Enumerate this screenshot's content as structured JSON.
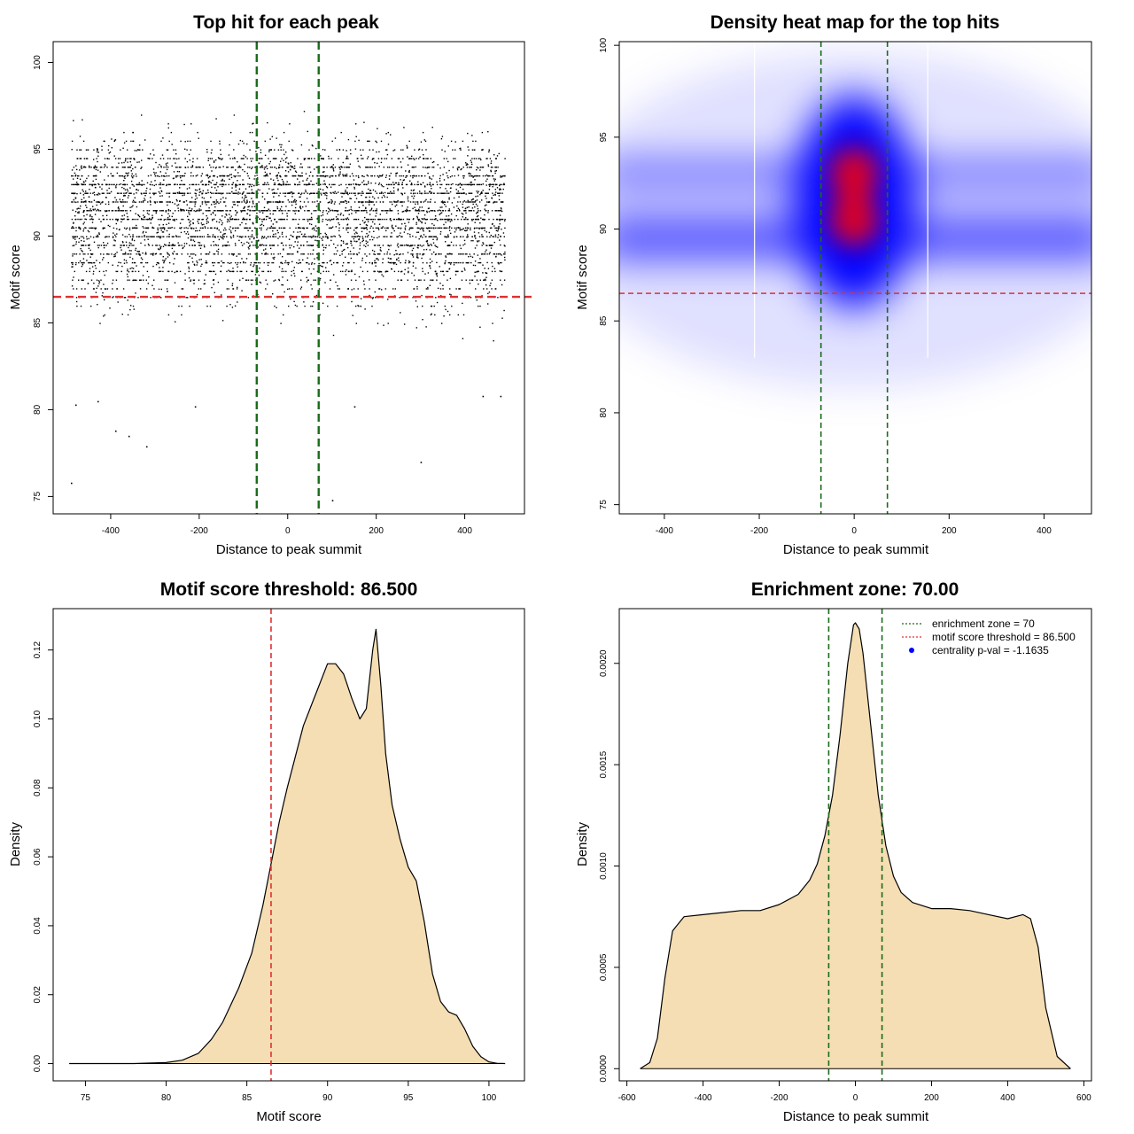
{
  "chart_data": [
    {
      "type": "scatter",
      "title": "Top hit for each peak",
      "xlabel": "Distance to peak summit",
      "ylabel": "Motif score",
      "xlim": [
        -530,
        535
      ],
      "ylim": [
        74,
        101.2
      ],
      "xticks": [
        -400,
        -200,
        0,
        200,
        400
      ],
      "yticks": [
        75,
        80,
        85,
        90,
        95,
        100
      ],
      "point_cloud": {
        "x_range": [
          -490,
          490
        ],
        "score_distribution": [
          {
            "score": 93,
            "weight": 0.42,
            "sd": 2.0
          },
          {
            "score": 90,
            "weight": 0.58,
            "sd": 2.8
          }
        ],
        "score_range": [
          80,
          99.5
        ]
      },
      "outliers": [
        {
          "x": -490,
          "y": 75.8
        },
        {
          "x": -390,
          "y": 78.8
        },
        {
          "x": -360,
          "y": 78.5
        },
        {
          "x": -320,
          "y": 77.9
        },
        {
          "x": 300,
          "y": 77.0
        },
        {
          "x": 100,
          "y": 74.8
        },
        {
          "x": -480,
          "y": 80.3
        },
        {
          "x": -210,
          "y": 80.2
        },
        {
          "x": 150,
          "y": 80.2
        },
        {
          "x": 480,
          "y": 80.8
        },
        {
          "x": 440,
          "y": 80.8
        },
        {
          "x": -430,
          "y": 80.5
        }
      ],
      "hlines": [
        {
          "y": 86.5,
          "color": "#e03030"
        }
      ],
      "vlines": [
        {
          "x": -70,
          "color": "#1a6b1a"
        },
        {
          "x": 70,
          "color": "#1a6b1a"
        }
      ]
    },
    {
      "type": "heatmap",
      "title": "Density heat map for the top hits",
      "xlabel": "Distance to peak summit",
      "ylabel": "Motif score",
      "xlim": [
        -495,
        500
      ],
      "ylim": [
        74.5,
        100.2
      ],
      "xticks": [
        -400,
        -200,
        0,
        200,
        400
      ],
      "yticks": [
        75,
        80,
        85,
        90,
        95,
        100
      ],
      "colors": {
        "low": "#ffffff",
        "mid": "#0000ff",
        "high": "#ff0000"
      },
      "hotspots": [
        {
          "x": 0,
          "y": 93,
          "level": "high"
        },
        {
          "x": 0,
          "y": 90.5,
          "level": "high"
        }
      ],
      "bands": [
        {
          "y": 93
        },
        {
          "y": 90
        },
        {
          "y": 89
        }
      ],
      "white_lines_x": [
        -210,
        155
      ],
      "hlines": [
        {
          "y": 86.5,
          "color": "#e03030"
        }
      ],
      "vlines": [
        {
          "x": -70,
          "color": "#1a6b1a"
        },
        {
          "x": 70,
          "color": "#1a6b1a"
        }
      ]
    },
    {
      "type": "area",
      "title": "Motif score threshold: 86.500",
      "xlabel": "Motif score",
      "ylabel": "Density",
      "xlim": [
        73,
        102.2
      ],
      "ylim": [
        -0.005,
        0.132
      ],
      "xticks": [
        75,
        80,
        85,
        90,
        95,
        100
      ],
      "yticks": [
        0.0,
        0.02,
        0.04,
        0.06,
        0.08,
        0.1,
        0.12
      ],
      "ytick_labels": [
        "0.00",
        "0.02",
        "0.04",
        "0.06",
        "0.08",
        "0.10",
        "0.12"
      ],
      "fill_color": "#f5deb3",
      "x": [
        74,
        78,
        80,
        81,
        82,
        82.8,
        83.5,
        84.5,
        85.3,
        86,
        86.5,
        87,
        87.5,
        88,
        88.5,
        89,
        89.5,
        90,
        90.5,
        91,
        91.5,
        92,
        92.4,
        92.8,
        93,
        93.3,
        93.6,
        94,
        94.5,
        95,
        95.5,
        96,
        96.5,
        97,
        97.5,
        98,
        98.5,
        99,
        99.5,
        100,
        100.5,
        101
      ],
      "y": [
        0.0,
        0.0,
        0.0003,
        0.001,
        0.003,
        0.007,
        0.012,
        0.022,
        0.032,
        0.046,
        0.058,
        0.07,
        0.08,
        0.089,
        0.098,
        0.104,
        0.11,
        0.116,
        0.116,
        0.113,
        0.106,
        0.1,
        0.103,
        0.12,
        0.126,
        0.11,
        0.09,
        0.075,
        0.065,
        0.057,
        0.053,
        0.041,
        0.026,
        0.018,
        0.015,
        0.014,
        0.01,
        0.005,
        0.002,
        0.0005,
        0.0001,
        0.0
      ],
      "vlines": [
        {
          "x": 86.5,
          "color": "#e03030"
        }
      ]
    },
    {
      "type": "area",
      "title": "Enrichment zone: 70.00",
      "xlabel": "Distance to peak summit",
      "ylabel": "Density",
      "xlim": [
        -620,
        620
      ],
      "ylim": [
        -6e-05,
        0.00227
      ],
      "xticks": [
        -600,
        -400,
        -200,
        0,
        200,
        400,
        600
      ],
      "yticks": [
        0.0,
        0.0005,
        0.001,
        0.0015,
        0.002
      ],
      "ytick_labels": [
        "0.0000",
        "0.0005",
        "0.0010",
        "0.0015",
        "0.0020"
      ],
      "fill_color": "#f5deb3",
      "x": [
        -565,
        -540,
        -520,
        -500,
        -480,
        -450,
        -400,
        -350,
        -300,
        -250,
        -200,
        -150,
        -120,
        -100,
        -80,
        -60,
        -40,
        -20,
        -5,
        0,
        10,
        20,
        40,
        60,
        80,
        100,
        120,
        150,
        200,
        250,
        300,
        350,
        400,
        440,
        460,
        480,
        500,
        530,
        565
      ],
      "y": [
        0.0,
        3e-05,
        0.00015,
        0.00045,
        0.00068,
        0.00075,
        0.00076,
        0.00077,
        0.00078,
        0.00078,
        0.00081,
        0.00086,
        0.00093,
        0.00101,
        0.00115,
        0.00135,
        0.00165,
        0.002,
        0.00219,
        0.0022,
        0.00217,
        0.00205,
        0.0017,
        0.00135,
        0.0011,
        0.00095,
        0.00087,
        0.00082,
        0.00079,
        0.00079,
        0.00078,
        0.00076,
        0.00074,
        0.00076,
        0.00074,
        0.0006,
        0.0003,
        6e-05,
        0.0
      ],
      "vlines": [
        {
          "x": -70,
          "color": "#1a6b1a"
        },
        {
          "x": 70,
          "color": "#1a6b1a"
        }
      ],
      "legend_position": "top-right",
      "legend": [
        {
          "label": "enrichment zone = 70",
          "style": "dotted",
          "color": "#1a6b1a"
        },
        {
          "label": "motif score threshold = 86.500",
          "style": "dotted",
          "color": "#e03030"
        },
        {
          "label": "centrality p-val = -1.1635",
          "style": "point",
          "color": "#0000ff"
        }
      ]
    }
  ]
}
